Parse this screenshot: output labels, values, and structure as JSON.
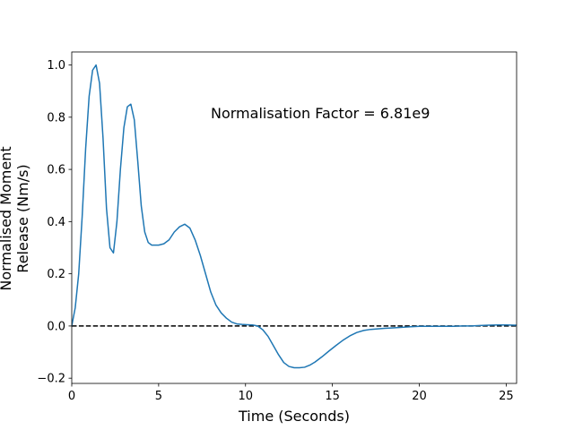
{
  "chart_data": {
    "type": "line",
    "title": "",
    "xlabel": "Time (Seconds)",
    "ylabel_lines": [
      "Normalised Moment",
      "Release (Nm/s)"
    ],
    "xlim": [
      0,
      25.6
    ],
    "ylim": [
      -0.22,
      1.05
    ],
    "xticks": [
      0,
      5,
      10,
      15,
      20,
      25
    ],
    "yticks": [
      -0.2,
      0.0,
      0.2,
      0.4,
      0.6,
      0.8,
      1.0
    ],
    "xtick_labels": [
      "0",
      "5",
      "10",
      "15",
      "20",
      "25"
    ],
    "ytick_labels": [
      "−0.2",
      "0.0",
      "0.2",
      "0.4",
      "0.6",
      "0.8",
      "1.0"
    ],
    "grid": false,
    "annotation": "Normalisation Factor = 6.81e9",
    "reference_line": {
      "y": 0.0,
      "style": "dashed",
      "color": "#000000"
    },
    "series": [
      {
        "color": "#1f77b4",
        "x": [
          0,
          0.2,
          0.4,
          0.6,
          0.8,
          1.0,
          1.2,
          1.4,
          1.6,
          1.8,
          2.0,
          2.2,
          2.4,
          2.6,
          2.8,
          3.0,
          3.2,
          3.4,
          3.6,
          3.8,
          4.0,
          4.2,
          4.4,
          4.6,
          4.8,
          5.0,
          5.3,
          5.6,
          5.9,
          6.2,
          6.5,
          6.8,
          7.1,
          7.4,
          7.7,
          8.0,
          8.3,
          8.6,
          8.9,
          9.2,
          9.5,
          9.8,
          10.1,
          10.4,
          10.7,
          11.0,
          11.3,
          11.6,
          11.9,
          12.2,
          12.5,
          12.8,
          13.1,
          13.4,
          13.7,
          14.0,
          14.4,
          14.8,
          15.2,
          15.6,
          16.0,
          16.4,
          16.8,
          17.2,
          17.6,
          18.0,
          18.5,
          19.0,
          19.5,
          20.0,
          20.5,
          21.0,
          21.5,
          22.0,
          22.5,
          23.0,
          23.5,
          24.0,
          24.5,
          25.0,
          25.5,
          25.6
        ],
        "y": [
          0.0,
          0.07,
          0.2,
          0.42,
          0.68,
          0.88,
          0.98,
          1.0,
          0.93,
          0.72,
          0.45,
          0.3,
          0.28,
          0.4,
          0.6,
          0.76,
          0.84,
          0.85,
          0.79,
          0.63,
          0.46,
          0.36,
          0.32,
          0.31,
          0.31,
          0.31,
          0.315,
          0.33,
          0.36,
          0.38,
          0.39,
          0.375,
          0.33,
          0.27,
          0.2,
          0.13,
          0.08,
          0.05,
          0.03,
          0.015,
          0.008,
          0.006,
          0.005,
          0.004,
          0.0,
          -0.015,
          -0.04,
          -0.075,
          -0.11,
          -0.14,
          -0.155,
          -0.16,
          -0.16,
          -0.158,
          -0.15,
          -0.138,
          -0.118,
          -0.096,
          -0.075,
          -0.055,
          -0.038,
          -0.025,
          -0.017,
          -0.013,
          -0.011,
          -0.009,
          -0.007,
          -0.005,
          -0.003,
          -0.001,
          -0.001,
          -0.001,
          -0.001,
          -0.001,
          0.0,
          0.0,
          0.002,
          0.003,
          0.004,
          0.004,
          0.003,
          0.003
        ]
      }
    ]
  }
}
